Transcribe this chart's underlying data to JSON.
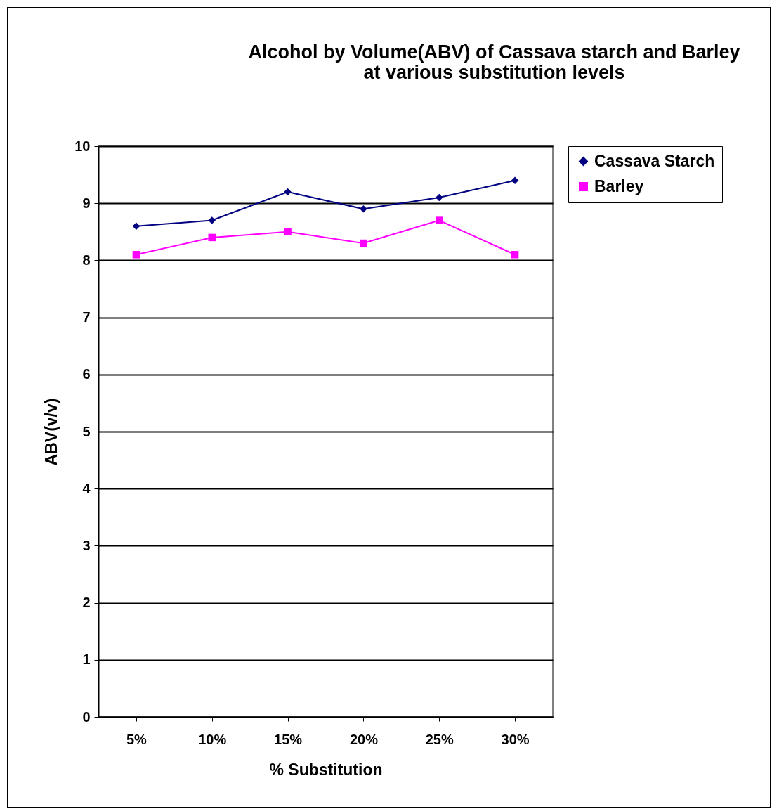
{
  "chart_data": {
    "type": "line",
    "title": "Alcohol by Volume(ABV) of Cassava starch and Barley\nat various substitution levels",
    "xlabel": "% Substitution",
    "ylabel": "ABV(v/v)",
    "categories": [
      "5%",
      "10%",
      "15%",
      "20%",
      "25%",
      "30%"
    ],
    "series": [
      {
        "name": "Cassava Starch",
        "color": "#000080",
        "marker": "diamond",
        "values": [
          8.6,
          8.7,
          9.2,
          8.9,
          9.1,
          9.4
        ]
      },
      {
        "name": "Barley",
        "color": "#ff00ff",
        "marker": "square",
        "values": [
          8.1,
          8.4,
          8.5,
          8.3,
          8.7,
          8.1
        ]
      }
    ],
    "ylim": [
      0,
      10
    ],
    "yticks": [
      0,
      1,
      2,
      3,
      4,
      5,
      6,
      7,
      8,
      9,
      10
    ],
    "grid": "y",
    "legend": "right"
  }
}
